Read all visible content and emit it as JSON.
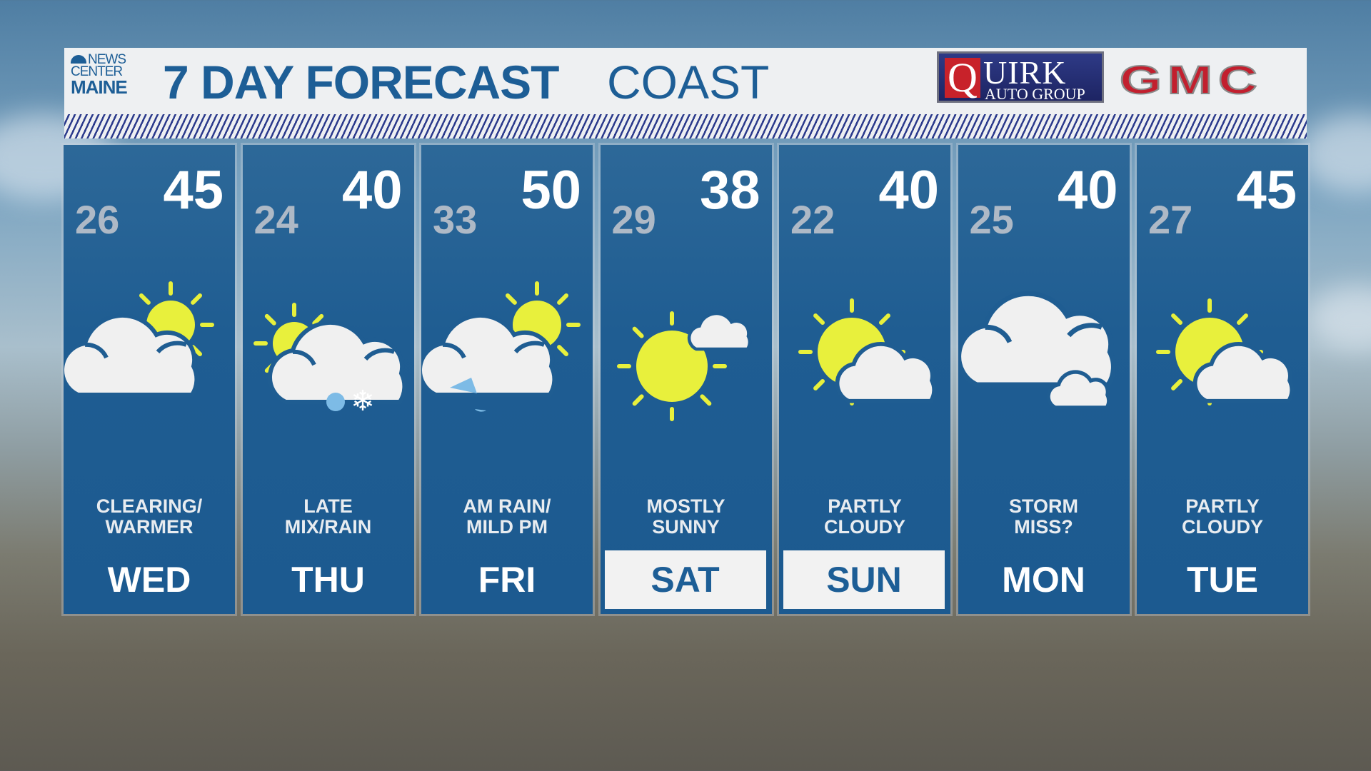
{
  "header": {
    "logo": {
      "line1": "NEWS",
      "line2": "CENTER",
      "line3": "MAINE"
    },
    "title": "7 DAY FORECAST",
    "subtitle": "COAST",
    "sponsor": {
      "quirk_letter": "Q",
      "quirk_word": "UIRK",
      "quirk_sub": "AUTO GROUP",
      "gmc": "GMC"
    }
  },
  "colors": {
    "panel": "#1f5d92",
    "title": "#1d5e96",
    "sun": "#e8f03c",
    "cloud": "#f0f0f0",
    "rain": "#7dbbe6",
    "highlight": "#f2f2f2"
  },
  "days": [
    {
      "day": "WED",
      "low": "26",
      "high": "45",
      "desc1": "CLEARING/",
      "desc2": "WARMER",
      "icon": "cloud-sun-icon",
      "highlight": false
    },
    {
      "day": "THU",
      "low": "24",
      "high": "40",
      "desc1": "LATE",
      "desc2": "MIX/RAIN",
      "icon": "sun-cloud-rain-snow-icon",
      "highlight": false
    },
    {
      "day": "FRI",
      "low": "33",
      "high": "50",
      "desc1": "AM RAIN/",
      "desc2": "MILD PM",
      "icon": "cloud-sun-rain-icon",
      "highlight": false
    },
    {
      "day": "SAT",
      "low": "29",
      "high": "38",
      "desc1": "MOSTLY",
      "desc2": "SUNNY",
      "icon": "mostly-sunny-icon",
      "highlight": true
    },
    {
      "day": "SUN",
      "low": "22",
      "high": "40",
      "desc1": "PARTLY",
      "desc2": "CLOUDY",
      "icon": "partly-cloudy-icon",
      "highlight": true
    },
    {
      "day": "MON",
      "low": "25",
      "high": "40",
      "desc1": "STORM",
      "desc2": "MISS?",
      "icon": "cloudy-icon",
      "highlight": false
    },
    {
      "day": "TUE",
      "low": "27",
      "high": "45",
      "desc1": "PARTLY",
      "desc2": "CLOUDY",
      "icon": "partly-cloudy-icon",
      "highlight": false
    }
  ]
}
